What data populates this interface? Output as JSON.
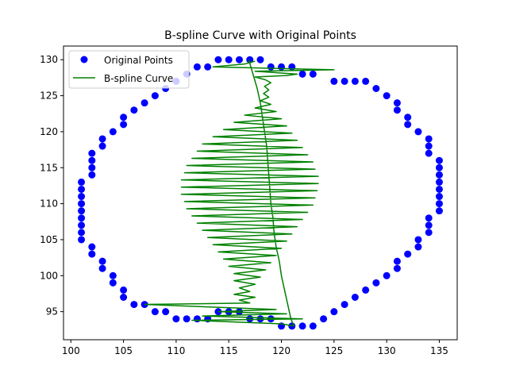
{
  "chart_data": {
    "type": "scatter",
    "title": "B-spline Curve with Original Points",
    "xlabel": "",
    "ylabel": "",
    "xlim": [
      99.3,
      136.7
    ],
    "ylim": [
      91.1,
      131.9
    ],
    "xticks": [
      100,
      105,
      110,
      115,
      120,
      125,
      130,
      135
    ],
    "yticks": [
      95,
      100,
      105,
      110,
      115,
      120,
      125,
      130
    ],
    "grid": false,
    "legend_position": "upper-left",
    "series": [
      {
        "name": "Original Points",
        "kind": "scatter",
        "color": "#0000ff",
        "points": [
          [
            114,
            130
          ],
          [
            115,
            130
          ],
          [
            116,
            130
          ],
          [
            117,
            130
          ],
          [
            118,
            130
          ],
          [
            112,
            129
          ],
          [
            113,
            129
          ],
          [
            119,
            129
          ],
          [
            120,
            129
          ],
          [
            121,
            129
          ],
          [
            111,
            128
          ],
          [
            122,
            128
          ],
          [
            123,
            128
          ],
          [
            110,
            127
          ],
          [
            125,
            127
          ],
          [
            126,
            127
          ],
          [
            127,
            127
          ],
          [
            109,
            126
          ],
          [
            128,
            127
          ],
          [
            129,
            126
          ],
          [
            107,
            124
          ],
          [
            108,
            125
          ],
          [
            130,
            125
          ],
          [
            106,
            123
          ],
          [
            131,
            124
          ],
          [
            131,
            123
          ],
          [
            105,
            122
          ],
          [
            105,
            121
          ],
          [
            132,
            122
          ],
          [
            132,
            121
          ],
          [
            104,
            120
          ],
          [
            133,
            120
          ],
          [
            103,
            119
          ],
          [
            103,
            118
          ],
          [
            134,
            119
          ],
          [
            134,
            118
          ],
          [
            134,
            117
          ],
          [
            102,
            117
          ],
          [
            102,
            116
          ],
          [
            102,
            115
          ],
          [
            102,
            114
          ],
          [
            135,
            116
          ],
          [
            135,
            115
          ],
          [
            135,
            114
          ],
          [
            135,
            113
          ],
          [
            135,
            112
          ],
          [
            135,
            111
          ],
          [
            135,
            110
          ],
          [
            135,
            109
          ],
          [
            101,
            113
          ],
          [
            101,
            112
          ],
          [
            101,
            111
          ],
          [
            101,
            110
          ],
          [
            101,
            109
          ],
          [
            101,
            108
          ],
          [
            101,
            107
          ],
          [
            101,
            106
          ],
          [
            101,
            105
          ],
          [
            134,
            108
          ],
          [
            134,
            107
          ],
          [
            134,
            106
          ],
          [
            102,
            104
          ],
          [
            102,
            103
          ],
          [
            133,
            105
          ],
          [
            133,
            104
          ],
          [
            103,
            102
          ],
          [
            103,
            101
          ],
          [
            132,
            103
          ],
          [
            131,
            102
          ],
          [
            131,
            101
          ],
          [
            104,
            100
          ],
          [
            104,
            99
          ],
          [
            130,
            100
          ],
          [
            129,
            99
          ],
          [
            105,
            98
          ],
          [
            105,
            97
          ],
          [
            128,
            98
          ],
          [
            127,
            97
          ],
          [
            106,
            96
          ],
          [
            107,
            96
          ],
          [
            126,
            96
          ],
          [
            125,
            95
          ],
          [
            108,
            95
          ],
          [
            109,
            95
          ],
          [
            124,
            94
          ],
          [
            110,
            94
          ],
          [
            111,
            94
          ],
          [
            112,
            94
          ],
          [
            113,
            94
          ],
          [
            114,
            95
          ],
          [
            115,
            95
          ],
          [
            116,
            95
          ],
          [
            117,
            94
          ],
          [
            118,
            94
          ],
          [
            119,
            94
          ],
          [
            120,
            93
          ],
          [
            121,
            93
          ],
          [
            122,
            93
          ],
          [
            123,
            93
          ]
        ]
      },
      {
        "name": "B-spline Curve",
        "kind": "line",
        "color": "#008000",
        "points": [
          [
            116.9,
            130
          ],
          [
            117.3,
            128
          ],
          [
            117.7,
            126
          ],
          [
            118.0,
            124
          ],
          [
            118.2,
            122
          ],
          [
            118.4,
            120
          ],
          [
            118.6,
            118
          ],
          [
            118.7,
            116
          ],
          [
            118.8,
            114
          ],
          [
            118.9,
            112
          ],
          [
            119.0,
            110
          ],
          [
            119.2,
            108
          ],
          [
            119.3,
            106
          ],
          [
            119.5,
            104
          ],
          [
            119.8,
            102
          ],
          [
            120.0,
            100
          ],
          [
            120.3,
            98
          ],
          [
            120.6,
            96
          ],
          [
            120.9,
            94
          ],
          [
            121.2,
            93
          ],
          [
            120.0,
            93.3
          ],
          [
            111.5,
            93.8
          ],
          [
            122.0,
            94
          ],
          [
            112.5,
            94.4
          ],
          [
            120.5,
            94.7
          ],
          [
            114.0,
            95.0
          ],
          [
            119.5,
            95.3
          ],
          [
            107.0,
            96.0
          ],
          [
            117.0,
            96.2
          ],
          [
            116.0,
            96.6
          ],
          [
            117.5,
            97.0
          ],
          [
            115.5,
            97.4
          ],
          [
            117.0,
            97.8
          ],
          [
            116.0,
            98.3
          ],
          [
            117.5,
            98.8
          ],
          [
            115.5,
            99.3
          ],
          [
            118.0,
            99.8
          ],
          [
            115.5,
            100.3
          ],
          [
            118.5,
            100.8
          ],
          [
            115.0,
            101.3
          ],
          [
            119.0,
            101.8
          ],
          [
            114.5,
            102.3
          ],
          [
            119.5,
            102.8
          ],
          [
            114.0,
            103.3
          ],
          [
            120.0,
            103.8
          ],
          [
            113.5,
            104.3
          ],
          [
            120.5,
            104.8
          ],
          [
            113.0,
            105.3
          ],
          [
            121.0,
            105.8
          ],
          [
            112.5,
            106.3
          ],
          [
            121.5,
            106.8
          ],
          [
            112.0,
            107.3
          ],
          [
            122.0,
            107.8
          ],
          [
            111.5,
            108.3
          ],
          [
            122.5,
            108.8
          ],
          [
            111.0,
            109.3
          ],
          [
            123.0,
            109.8
          ],
          [
            110.8,
            110.3
          ],
          [
            123.2,
            110.8
          ],
          [
            110.5,
            111.3
          ],
          [
            123.4,
            111.8
          ],
          [
            110.5,
            112.3
          ],
          [
            123.5,
            112.8
          ],
          [
            110.5,
            113.3
          ],
          [
            123.5,
            113.8
          ],
          [
            110.8,
            114.3
          ],
          [
            123.2,
            114.8
          ],
          [
            111.0,
            115.3
          ],
          [
            123.0,
            115.8
          ],
          [
            111.5,
            116.3
          ],
          [
            122.5,
            116.8
          ],
          [
            112.0,
            117.3
          ],
          [
            122.0,
            117.8
          ],
          [
            112.5,
            118.3
          ],
          [
            121.5,
            118.8
          ],
          [
            113.5,
            119.3
          ],
          [
            121.0,
            119.8
          ],
          [
            114.5,
            120.3
          ],
          [
            120.5,
            120.8
          ],
          [
            115.5,
            121.3
          ],
          [
            120.0,
            121.8
          ],
          [
            116.5,
            122.3
          ],
          [
            119.5,
            122.8
          ],
          [
            117.5,
            123.3
          ],
          [
            119.0,
            123.8
          ],
          [
            118.0,
            124.3
          ],
          [
            118.8,
            124.8
          ],
          [
            118.3,
            125.3
          ],
          [
            118.8,
            125.8
          ],
          [
            118.4,
            126.3
          ],
          [
            119.0,
            126.8
          ],
          [
            118.5,
            127.2
          ],
          [
            117.5,
            127.6
          ],
          [
            120.5,
            127.8
          ],
          [
            121.5,
            128.0
          ],
          [
            117.5,
            128.4
          ],
          [
            125.0,
            128.6
          ],
          [
            113.5,
            129.0
          ],
          [
            116.5,
            129.4
          ],
          [
            117.5,
            129.8
          ]
        ]
      }
    ]
  }
}
